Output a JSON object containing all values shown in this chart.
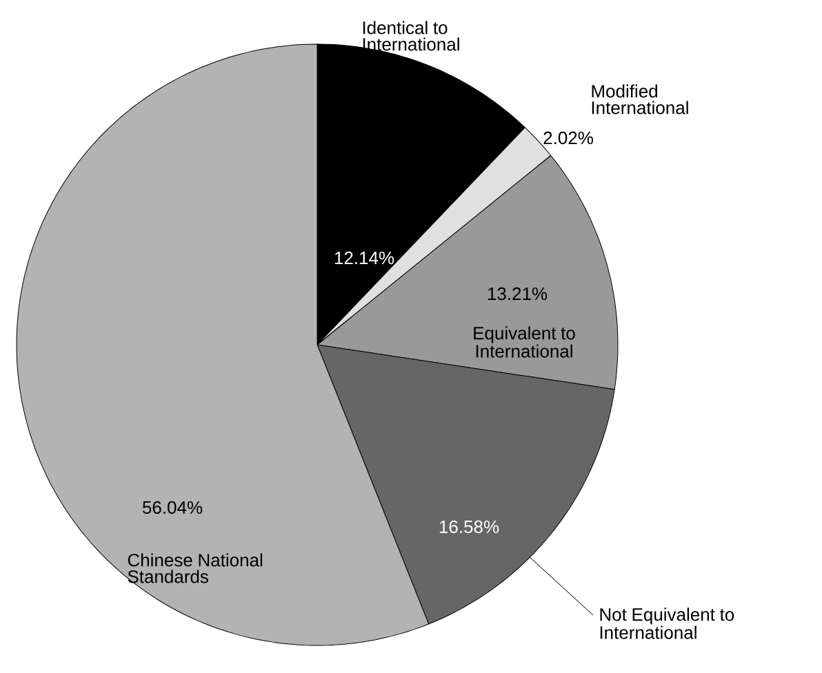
{
  "chart_data": {
    "type": "pie",
    "categories": [
      "Identical to International",
      "Modified International",
      "Equivalent to International",
      "Not Equivalent to International",
      "Chinese National Standards"
    ],
    "values": [
      12.14,
      2.02,
      13.21,
      16.58,
      56.04
    ],
    "value_labels": [
      "12.14%",
      "2.02%",
      "13.21%",
      "16.58%",
      "56.04%"
    ],
    "colors": [
      "#000000",
      "#e0e0e0",
      "#999999",
      "#666666",
      "#b3b3b3"
    ],
    "legend": false
  }
}
